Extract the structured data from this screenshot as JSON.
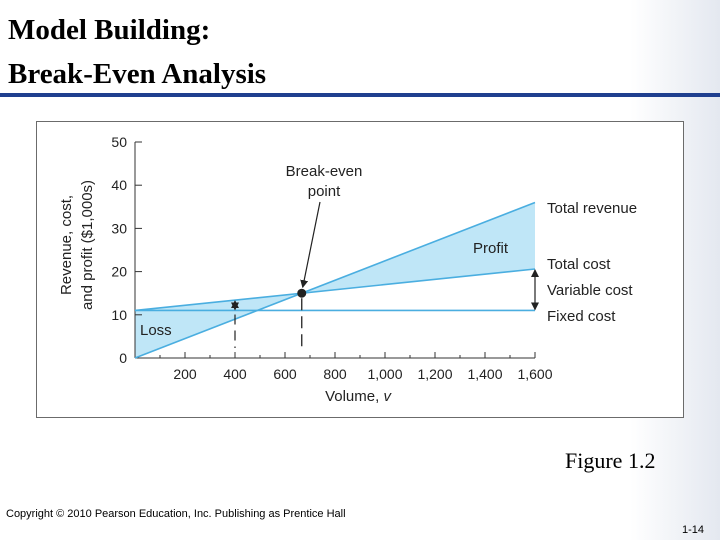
{
  "slide": {
    "title_line1": "Model Building:",
    "title_line2": "Break-Even Analysis",
    "caption": "Figure 1.2",
    "footer_left": "Copyright © 2010 Pearson Education, Inc. Publishing as Prentice Hall",
    "page_number": "1-14"
  },
  "colors": {
    "title_rule": "#1f3f8f",
    "line": "#4aaee0",
    "fill": "#bfe6f7",
    "axis": "#333333"
  },
  "chart_data": {
    "type": "line",
    "title": "",
    "xlabel": "Volume, v",
    "ylabel_line1": "Revenue, cost,",
    "ylabel_line2": "and profit ($1,000s)",
    "xlim": [
      0,
      1600
    ],
    "ylim": [
      0,
      50
    ],
    "x_ticks": [
      200,
      400,
      600,
      800,
      1000,
      1200,
      1400,
      1600
    ],
    "x_tick_labels": [
      "200",
      "400",
      "600",
      "800",
      "1,000",
      "1,200",
      "1,400",
      "1,600"
    ],
    "y_ticks": [
      0,
      10,
      20,
      30,
      40,
      50
    ],
    "y_tick_labels": [
      "0",
      "10",
      "20",
      "30",
      "40",
      "50"
    ],
    "series": [
      {
        "name": "Total revenue",
        "x": [
          0,
          1600
        ],
        "y": [
          0,
          36
        ]
      },
      {
        "name": "Total cost",
        "x": [
          0,
          1600
        ],
        "y": [
          11,
          20.6
        ]
      },
      {
        "name": "Fixed cost",
        "x": [
          0,
          1600
        ],
        "y": [
          11,
          11
        ]
      }
    ],
    "break_even": {
      "x": 667,
      "y": 15
    },
    "annotations": {
      "break_even_line1": "Break-even",
      "break_even_line2": "point",
      "profit": "Profit",
      "loss": "Loss",
      "variable_cost": "Variable cost"
    }
  }
}
